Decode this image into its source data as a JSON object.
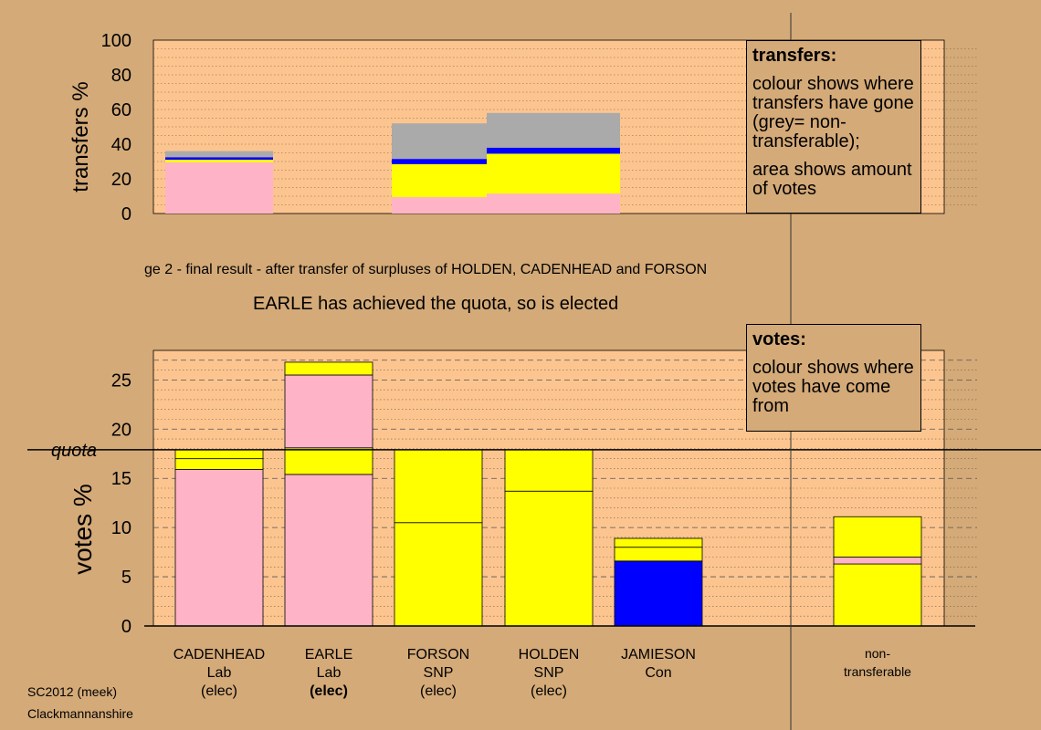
{
  "colors": {
    "page_bg": "#d4aa78",
    "plot_bg": "#fcc590",
    "lab": "#ffb3c6",
    "snp": "#ffff00",
    "con": "#0000ff",
    "non_transferable": "#aaaaaa",
    "legend_bg": "#d4aa78"
  },
  "stage_caption": "ge 2 - final result - after transfer of surpluses of HOLDEN, CADENHEAD and FORSON",
  "status_line": "EARLE has achieved the quota, so is elected",
  "footer": {
    "election": "SC2012 (meek)",
    "ward": "Clackmannanshire"
  },
  "legend_transfers": {
    "title": "transfers:",
    "text1": "colour shows where transfers have gone (grey= non-transferable);",
    "text2": "area shows amount of votes"
  },
  "legend_votes": {
    "title": "votes:",
    "text1": "colour shows where votes have come from"
  },
  "candidates": [
    {
      "name": "CADENHEAD",
      "party": "Lab",
      "status": "(elec)",
      "status_bold": false
    },
    {
      "name": "EARLE",
      "party": "Lab",
      "status": "(elec)",
      "status_bold": true
    },
    {
      "name": "FORSON",
      "party": "SNP",
      "status": "(elec)",
      "status_bold": false
    },
    {
      "name": "HOLDEN",
      "party": "SNP",
      "status": "(elec)",
      "status_bold": false
    },
    {
      "name": "JAMIESON",
      "party": "Con",
      "status": "",
      "status_bold": false
    },
    {
      "name": "non-",
      "party": "transferable",
      "status": "",
      "status_bold": false
    }
  ],
  "chart_data": [
    {
      "type": "bar",
      "subtype": "stacked-variable-width",
      "ylabel": "transfers %",
      "ylim": [
        0,
        100
      ],
      "yticks": [
        0,
        20,
        40,
        60,
        80,
        100
      ],
      "grid": "horizontal dotted",
      "legend_placement": "top-right",
      "note": "stacked transfer destinations for the three surpluses transferred (CADENHEAD, FORSON, HOLDEN); order: CADENHEAD, EARLE, FORSON, HOLDEN, JAMIESON, non-transferable",
      "transfers": [
        {
          "from": "CADENHEAD",
          "width_votes": 1.9,
          "segments": [
            29.5,
            0,
            1.5,
            0,
            1.5,
            3.5
          ]
        },
        {
          "from": "FORSON",
          "width_votes": 6.8,
          "segments": [
            9.5,
            0,
            19.0,
            0,
            3.0,
            20.5
          ]
        },
        {
          "from": "HOLDEN",
          "width_votes": 9.5,
          "segments": [
            11.5,
            0,
            0,
            23.0,
            3.5,
            20.0
          ]
        }
      ]
    },
    {
      "type": "bar",
      "subtype": "stacked",
      "ylabel": "votes %",
      "ylim": [
        0,
        28
      ],
      "yticks": [
        0,
        5,
        10,
        15,
        20,
        25
      ],
      "quota_label": "quota",
      "quota": 17.9,
      "grid": "horizontal dashed/dotted",
      "legend_placement": "top-right",
      "categories": [
        "CADENHEAD",
        "EARLE",
        "FORSON",
        "HOLDEN",
        "JAMIESON",
        "non-transferable"
      ],
      "stacks": [
        [
          {
            "source": "Lab",
            "value": 15.9
          },
          {
            "source": "SNP",
            "value": 1.1
          },
          {
            "source": "SNP",
            "value": 0.9
          }
        ],
        [
          {
            "source": "Lab",
            "value": 15.4
          },
          {
            "source": "SNP",
            "value": 2.7
          },
          {
            "source": "Lab",
            "value": 7.4
          },
          {
            "source": "SNP",
            "value": 1.3
          }
        ],
        [
          {
            "source": "SNP",
            "value": 10.5
          },
          {
            "source": "SNP",
            "value": 7.4
          }
        ],
        [
          {
            "source": "SNP",
            "value": 13.7
          },
          {
            "source": "SNP",
            "value": 4.2
          }
        ],
        [
          {
            "source": "Con",
            "value": 6.6
          },
          {
            "source": "SNP",
            "value": 1.4
          },
          {
            "source": "SNP",
            "value": 0.9
          }
        ],
        [
          {
            "source": "SNP",
            "value": 6.3
          },
          {
            "source": "Lab",
            "value": 0.7
          },
          {
            "source": "SNP",
            "value": 4.1
          }
        ]
      ]
    }
  ]
}
